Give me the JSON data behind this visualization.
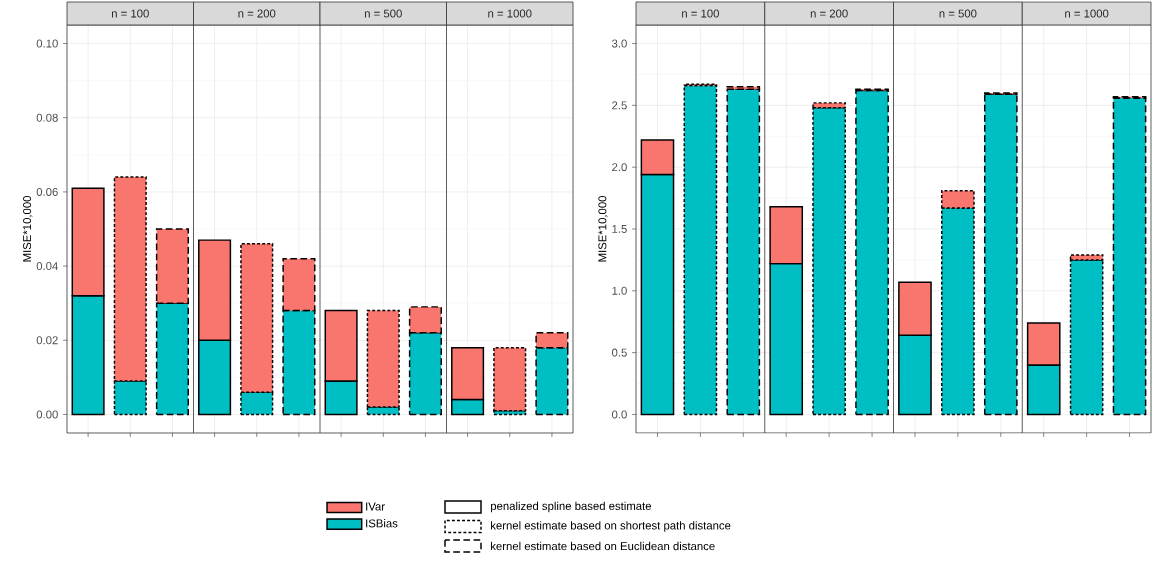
{
  "chart_data": [
    {
      "type": "bar",
      "stacked": true,
      "ylabel": "MISE*10,000",
      "categories": [
        null,
        null,
        null,
        null,
        null,
        null,
        null,
        null,
        null,
        null,
        null,
        null
      ],
      "legend": "bottom",
      "grid": true,
      "ylim": [
        -0.005,
        0.105
      ],
      "annotations": [
        "n = 100",
        "n = 200",
        "n = 500",
        "n = 1000"
      ],
      "yticks": [
        {
          "value": 0,
          "label": "0.00"
        },
        {
          "value": 0.02,
          "label": "0.02"
        },
        {
          "value": 0.04,
          "label": "0.04"
        },
        {
          "value": 0.06,
          "label": "0.06"
        },
        {
          "value": 0.08,
          "label": "0.08"
        },
        {
          "value": 0.1,
          "label": "0.10"
        }
      ],
      "series": [
        {
          "name": "ISBias",
          "color": "#00bfc4",
          "values": [
            0.032,
            0.009,
            0.03,
            0.02,
            0.006,
            0.028,
            0.009,
            0.002,
            0.022,
            0.004,
            0.001,
            0.018
          ]
        },
        {
          "name": "IVar",
          "color": "#f8766d",
          "values": [
            0.029,
            0.055,
            0.02,
            0.027,
            0.04,
            0.014,
            0.019,
            0.026,
            0.007,
            0.014,
            0.017,
            0.004
          ]
        }
      ]
    },
    {
      "type": "bar",
      "stacked": true,
      "ylabel": "MISE*10,000",
      "categories": [
        null,
        null,
        null,
        null,
        null,
        null,
        null,
        null,
        null,
        null,
        null,
        null
      ],
      "grid": true,
      "ylim": [
        -0.15,
        3.15
      ],
      "annotations": [
        "n = 100",
        "n = 200",
        "n = 500",
        "n = 1000"
      ],
      "yticks": [
        {
          "value": 0,
          "label": "0.0"
        },
        {
          "value": 0.5,
          "label": "0.5"
        },
        {
          "value": 1,
          "label": "1.0"
        },
        {
          "value": 1.5,
          "label": "1.5"
        },
        {
          "value": 2,
          "label": "2.0"
        },
        {
          "value": 2.5,
          "label": "2.5"
        },
        {
          "value": 3,
          "label": "3.0"
        }
      ],
      "series": [
        {
          "color": "#00bfc4",
          "values": [
            1.94,
            2.66,
            2.63,
            1.22,
            2.48,
            2.62,
            0.64,
            1.67,
            2.59,
            0.4,
            1.25,
            2.56
          ]
        },
        {
          "color": "#f8766d",
          "values": [
            0.28,
            0.01,
            0.02,
            0.46,
            0.04,
            0.01,
            0.43,
            0.14,
            0.01,
            0.34,
            0.04,
            0.01
          ]
        }
      ]
    },
    {
      "type": "other",
      "annotations": [
        "penalized spline based estimate",
        "kernel estimate based on shortest path distance",
        "kernel estimate based on Euclidean distance"
      ]
    }
  ]
}
